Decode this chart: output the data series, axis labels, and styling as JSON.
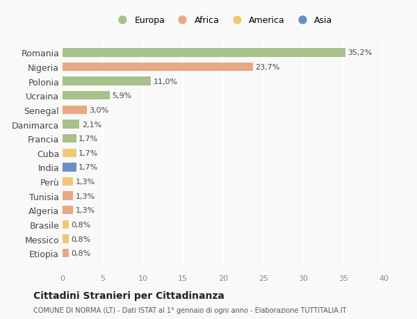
{
  "countries": [
    "Romania",
    "Nigeria",
    "Polonia",
    "Ucraina",
    "Senegal",
    "Danimarca",
    "Francia",
    "Cuba",
    "India",
    "Perù",
    "Tunisia",
    "Algeria",
    "Brasile",
    "Messico",
    "Etiopia"
  ],
  "values": [
    35.2,
    23.7,
    11.0,
    5.9,
    3.0,
    2.1,
    1.7,
    1.7,
    1.7,
    1.3,
    1.3,
    1.3,
    0.8,
    0.8,
    0.8
  ],
  "continents": [
    "Europa",
    "Africa",
    "Europa",
    "Europa",
    "Africa",
    "Europa",
    "Europa",
    "America",
    "Asia",
    "America",
    "Africa",
    "Africa",
    "America",
    "America",
    "Africa"
  ],
  "continent_colors": {
    "Europa": "#a8c08a",
    "Africa": "#e8a882",
    "America": "#f0c875",
    "Asia": "#6a8fc8"
  },
  "legend_order": [
    "Europa",
    "Africa",
    "America",
    "Asia"
  ],
  "title": "Cittadini Stranieri per Cittadinanza",
  "subtitle": "COMUNE DI NORMA (LT) - Dati ISTAT al 1° gennaio di ogni anno - Elaborazione TUTTITALIA.IT",
  "xlim": [
    0,
    40
  ],
  "xticks": [
    0,
    5,
    10,
    15,
    20,
    25,
    30,
    35,
    40
  ],
  "background_color": "#f9f9f9",
  "grid_color": "#ffffff",
  "bar_height": 0.6
}
